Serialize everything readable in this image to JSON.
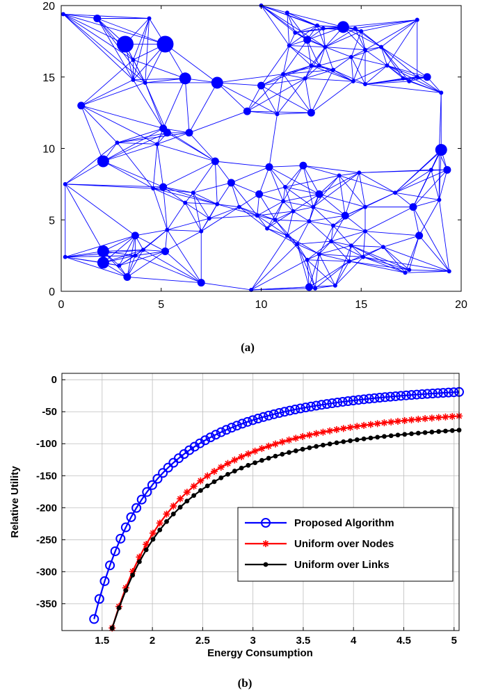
{
  "chart_data": [
    {
      "type": "scatter",
      "caption": "(a)",
      "xlim": [
        0,
        20
      ],
      "ylim": [
        0,
        20
      ],
      "x_ticks": [
        "0",
        "5",
        "10",
        "15",
        "20"
      ],
      "y_ticks": [
        "0",
        "5",
        "10",
        "15",
        "20"
      ],
      "edge_color": "#0000ff",
      "node_color": "#0000ff",
      "nodes": [
        {
          "x": 0.1,
          "y": 19.4,
          "s": 1
        },
        {
          "x": 1.8,
          "y": 19.1,
          "s": 2
        },
        {
          "x": 4.4,
          "y": 19.1,
          "s": 1
        },
        {
          "x": 3.2,
          "y": 17.3,
          "s": 4
        },
        {
          "x": 5.2,
          "y": 17.3,
          "s": 4
        },
        {
          "x": 3.6,
          "y": 16.2,
          "s": 1
        },
        {
          "x": 3.6,
          "y": 14.8,
          "s": 1
        },
        {
          "x": 4.2,
          "y": 14.6,
          "s": 1
        },
        {
          "x": 6.2,
          "y": 14.9,
          "s": 3
        },
        {
          "x": 7.8,
          "y": 14.6,
          "s": 3
        },
        {
          "x": 10.0,
          "y": 14.4,
          "s": 2
        },
        {
          "x": 10.0,
          "y": 20.0,
          "s": 1
        },
        {
          "x": 11.1,
          "y": 15.2,
          "s": 1
        },
        {
          "x": 12.5,
          "y": 15.8,
          "s": 1
        },
        {
          "x": 1.0,
          "y": 13.0,
          "s": 2
        },
        {
          "x": 9.3,
          "y": 12.6,
          "s": 2
        },
        {
          "x": 12.5,
          "y": 12.5,
          "s": 2
        },
        {
          "x": 5.1,
          "y": 11.4,
          "s": 2
        },
        {
          "x": 5.3,
          "y": 11.1,
          "s": 2
        },
        {
          "x": 6.4,
          "y": 11.1,
          "s": 2
        },
        {
          "x": 2.8,
          "y": 10.4,
          "s": 1
        },
        {
          "x": 4.8,
          "y": 10.3,
          "s": 1
        },
        {
          "x": 2.1,
          "y": 9.1,
          "s": 3
        },
        {
          "x": 0.2,
          "y": 7.5,
          "s": 1
        },
        {
          "x": 7.7,
          "y": 9.1,
          "s": 2
        },
        {
          "x": 4.6,
          "y": 7.2,
          "s": 1
        },
        {
          "x": 5.1,
          "y": 7.3,
          "s": 2
        },
        {
          "x": 6.2,
          "y": 6.2,
          "s": 1
        },
        {
          "x": 6.6,
          "y": 6.9,
          "s": 1
        },
        {
          "x": 8.5,
          "y": 7.6,
          "s": 2
        },
        {
          "x": 7.8,
          "y": 6.1,
          "s": 1
        },
        {
          "x": 9.9,
          "y": 6.8,
          "s": 2
        },
        {
          "x": 10.4,
          "y": 8.7,
          "s": 2
        },
        {
          "x": 12.1,
          "y": 8.8,
          "s": 2
        },
        {
          "x": 11.2,
          "y": 7.3,
          "s": 1
        },
        {
          "x": 12.9,
          "y": 6.8,
          "s": 2
        },
        {
          "x": 11.1,
          "y": 6.3,
          "s": 1
        },
        {
          "x": 9.8,
          "y": 5.3,
          "s": 1
        },
        {
          "x": 10.7,
          "y": 5.0,
          "s": 1
        },
        {
          "x": 11.6,
          "y": 5.6,
          "s": 1
        },
        {
          "x": 12.6,
          "y": 5.9,
          "s": 1
        },
        {
          "x": 10.3,
          "y": 4.4,
          "s": 1
        },
        {
          "x": 11.3,
          "y": 3.9,
          "s": 1
        },
        {
          "x": 12.4,
          "y": 4.9,
          "s": 1
        },
        {
          "x": 13.6,
          "y": 4.6,
          "s": 1
        },
        {
          "x": 14.2,
          "y": 5.3,
          "s": 2
        },
        {
          "x": 14.9,
          "y": 8.3,
          "s": 1
        },
        {
          "x": 15.2,
          "y": 4.2,
          "s": 1
        },
        {
          "x": 14.5,
          "y": 3.2,
          "s": 1
        },
        {
          "x": 16.1,
          "y": 3.1,
          "s": 1
        },
        {
          "x": 15.1,
          "y": 2.4,
          "s": 1
        },
        {
          "x": 14.4,
          "y": 2.1,
          "s": 1
        },
        {
          "x": 11.8,
          "y": 3.3,
          "s": 1
        },
        {
          "x": 12.3,
          "y": 2.2,
          "s": 1
        },
        {
          "x": 12.9,
          "y": 2.6,
          "s": 1
        },
        {
          "x": 13.5,
          "y": 3.5,
          "s": 1
        },
        {
          "x": 12.4,
          "y": 0.3,
          "s": 2
        },
        {
          "x": 12.7,
          "y": 0.2,
          "s": 1
        },
        {
          "x": 13.7,
          "y": 0.4,
          "s": 1
        },
        {
          "x": 9.5,
          "y": 0.1,
          "s": 1
        },
        {
          "x": 7.0,
          "y": 0.6,
          "s": 2
        },
        {
          "x": 3.3,
          "y": 1.0,
          "s": 2
        },
        {
          "x": 2.9,
          "y": 1.8,
          "s": 1
        },
        {
          "x": 2.1,
          "y": 2.0,
          "s": 3
        },
        {
          "x": 2.1,
          "y": 2.8,
          "s": 3
        },
        {
          "x": 0.2,
          "y": 2.4,
          "s": 1
        },
        {
          "x": 3.7,
          "y": 2.5,
          "s": 1
        },
        {
          "x": 4.1,
          "y": 2.9,
          "s": 1
        },
        {
          "x": 3.7,
          "y": 3.9,
          "s": 2
        },
        {
          "x": 5.2,
          "y": 2.8,
          "s": 2
        },
        {
          "x": 5.3,
          "y": 4.3,
          "s": 1
        },
        {
          "x": 7.0,
          "y": 4.2,
          "s": 1
        },
        {
          "x": 7.4,
          "y": 5.1,
          "s": 1
        },
        {
          "x": 8.9,
          "y": 5.9,
          "s": 1
        },
        {
          "x": 15.2,
          "y": 5.9,
          "s": 1
        },
        {
          "x": 16.7,
          "y": 6.9,
          "s": 1
        },
        {
          "x": 17.6,
          "y": 5.9,
          "s": 2
        },
        {
          "x": 17.9,
          "y": 3.9,
          "s": 2
        },
        {
          "x": 17.4,
          "y": 1.5,
          "s": 1
        },
        {
          "x": 17.2,
          "y": 1.3,
          "s": 1
        },
        {
          "x": 19.4,
          "y": 1.4,
          "s": 1
        },
        {
          "x": 18.5,
          "y": 8.5,
          "s": 1
        },
        {
          "x": 18.9,
          "y": 9.7,
          "s": 1
        },
        {
          "x": 19.0,
          "y": 9.9,
          "s": 3
        },
        {
          "x": 19.3,
          "y": 8.5,
          "s": 2
        },
        {
          "x": 18.9,
          "y": 6.4,
          "s": 1
        },
        {
          "x": 11.4,
          "y": 17.2,
          "s": 1
        },
        {
          "x": 12.3,
          "y": 17.6,
          "s": 2
        },
        {
          "x": 13.2,
          "y": 17.1,
          "s": 1
        },
        {
          "x": 12.9,
          "y": 15.8,
          "s": 1
        },
        {
          "x": 13.6,
          "y": 15.5,
          "s": 1
        },
        {
          "x": 12.2,
          "y": 14.9,
          "s": 1
        },
        {
          "x": 14.5,
          "y": 16.4,
          "s": 1
        },
        {
          "x": 14.6,
          "y": 14.7,
          "s": 1
        },
        {
          "x": 15.2,
          "y": 16.9,
          "s": 1
        },
        {
          "x": 15.0,
          "y": 18.2,
          "s": 1
        },
        {
          "x": 14.7,
          "y": 18.4,
          "s": 1
        },
        {
          "x": 14.1,
          "y": 18.5,
          "s": 3
        },
        {
          "x": 12.8,
          "y": 18.6,
          "s": 1
        },
        {
          "x": 11.7,
          "y": 18.1,
          "s": 1
        },
        {
          "x": 11.3,
          "y": 19.5,
          "s": 1
        },
        {
          "x": 16.3,
          "y": 15.8,
          "s": 1
        },
        {
          "x": 17.1,
          "y": 14.9,
          "s": 1
        },
        {
          "x": 17.4,
          "y": 14.7,
          "s": 1
        },
        {
          "x": 17.8,
          "y": 15.0,
          "s": 1
        },
        {
          "x": 18.3,
          "y": 15.0,
          "s": 2
        },
        {
          "x": 19.0,
          "y": 13.9,
          "s": 1
        },
        {
          "x": 17.8,
          "y": 19.0,
          "s": 1
        },
        {
          "x": 15.2,
          "y": 14.5,
          "s": 1
        },
        {
          "x": 16.0,
          "y": 17.1,
          "s": 1
        },
        {
          "x": 13.1,
          "y": 18.4,
          "s": 1
        },
        {
          "x": 10.8,
          "y": 12.4,
          "s": 1
        },
        {
          "x": 13.9,
          "y": 8.1,
          "s": 1
        }
      ]
    },
    {
      "type": "line",
      "caption": "(b)",
      "xlabel": "Energy Consumption",
      "ylabel": "Relative Utility",
      "xlim": [
        1.1,
        5.05
      ],
      "ylim": [
        -392,
        10
      ],
      "x_ticks": [
        "1.5",
        "2",
        "2.5",
        "3",
        "3.5",
        "4",
        "4.5",
        "5"
      ],
      "y_ticks": [
        "0",
        "-50",
        "-100",
        "-150",
        "-200",
        "-250",
        "-300",
        "-350"
      ],
      "legend_position": "bottom-right",
      "series": [
        {
          "name": "Proposed Algorithm",
          "color": "#0000ff",
          "marker": "circle",
          "x_start": 1.42,
          "x_end": 5.05,
          "n": 70,
          "a": 0.0,
          "c": 15.3,
          "y_at_start": -374
        },
        {
          "name": "Uniform over Nodes",
          "color": "#ff0000",
          "marker": "star",
          "x_start": 1.6,
          "x_end": 5.05,
          "n": 52,
          "a": -32.0,
          "c": 13.6,
          "y_at_start": -388
        },
        {
          "name": "Uniform over Links",
          "color": "#000000",
          "marker": "dot",
          "x_start": 1.6,
          "x_end": 5.05,
          "n": 52,
          "a": -56.0,
          "c": 14.6,
          "y_at_start": -388
        }
      ]
    }
  ]
}
